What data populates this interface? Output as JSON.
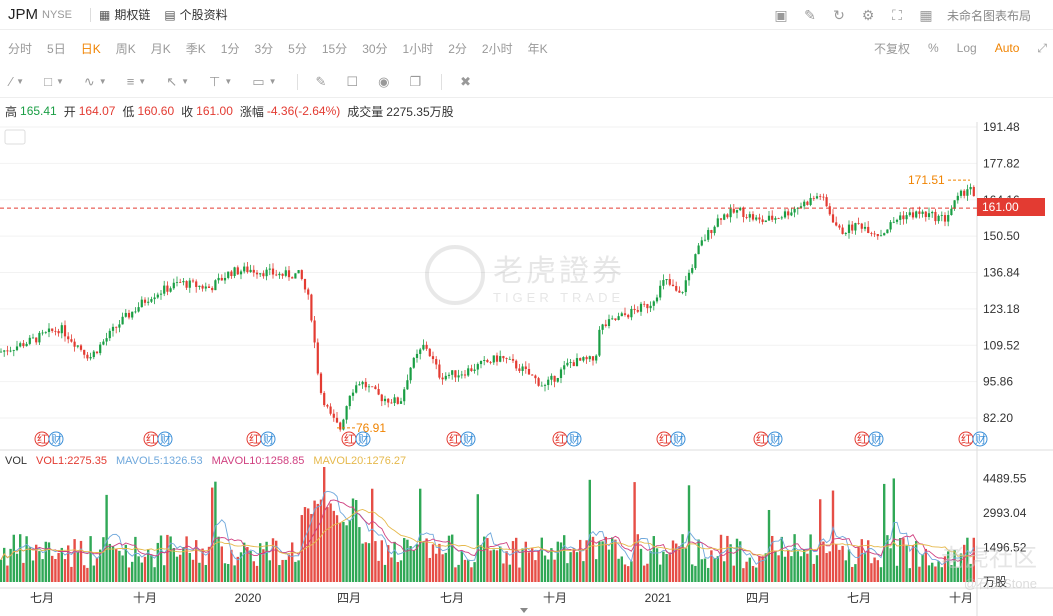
{
  "header": {
    "symbol": "JPM",
    "exchange": "NYSE",
    "options_chain": "期权链",
    "stock_profile": "个股资料",
    "layout_name": "未命名图表布局"
  },
  "periods": [
    "分时",
    "5日",
    "日K",
    "周K",
    "月K",
    "季K",
    "1分",
    "3分",
    "5分",
    "15分",
    "30分",
    "1小时",
    "2分",
    "2小时",
    "年K"
  ],
  "period_active": "日K",
  "period_right": {
    "adjust": "不复权",
    "percent": "%",
    "log": "Log",
    "auto": "Auto"
  },
  "info": {
    "high_label": "高",
    "high": "165.41",
    "open_label": "开",
    "open": "164.07",
    "low_label": "低",
    "low": "160.60",
    "close_label": "收",
    "close": "161.00",
    "change_label": "涨幅",
    "change": "-4.36(-2.64%)",
    "volume_label": "成交量",
    "volume": "2275.35万股"
  },
  "price_axis": [
    "191.48",
    "177.82",
    "164.16",
    "150.50",
    "136.84",
    "123.18",
    "109.52",
    "95.86",
    "82.20"
  ],
  "current_price": "161.00",
  "high_marker": "171.51",
  "low_marker": "76.91",
  "event_marker_label": "红",
  "event_marker_label2": "财",
  "vol_axis": [
    "4489.55",
    "2993.04",
    "1496.52"
  ],
  "vol_unit": "万股",
  "vol_legend": {
    "vol": "VOL",
    "vol1": "VOL1:2275.35",
    "mavol5": "MAVOL5:1326.53",
    "mavol10": "MAVOL10:1258.85",
    "mavol20": "MAVOL20:1276.27"
  },
  "x_axis": [
    "七月",
    "十月",
    "2020",
    "四月",
    "七月",
    "十月",
    "2021",
    "四月",
    "七月",
    "十月"
  ],
  "watermark": {
    "brand_cn": "老虎證券",
    "brand_en": "TIGER TRADE"
  },
  "corner_watermark": {
    "title": "老虎社区",
    "author": "@石头Stone"
  },
  "colors": {
    "up": "#e33b32",
    "down": "#1a9e44",
    "accent": "#f08300",
    "ma5": "#6fa8dc",
    "ma10": "#d04080",
    "ma20": "#e6b94c"
  },
  "chart_data": {
    "type": "candlestick",
    "price_range": [
      76.91,
      191.48
    ],
    "vol_range": [
      0,
      5000
    ],
    "anchors": [
      [
        0,
        107
      ],
      [
        30,
        111
      ],
      [
        60,
        116
      ],
      [
        90,
        105
      ],
      [
        120,
        118
      ],
      [
        150,
        128
      ],
      [
        180,
        133
      ],
      [
        210,
        131
      ],
      [
        230,
        137
      ],
      [
        250,
        138
      ],
      [
        280,
        136
      ],
      [
        300,
        136
      ],
      [
        310,
        125
      ],
      [
        320,
        93
      ],
      [
        330,
        83
      ],
      [
        340,
        78
      ],
      [
        350,
        92
      ],
      [
        360,
        96
      ],
      [
        380,
        90
      ],
      [
        400,
        88
      ],
      [
        410,
        101
      ],
      [
        425,
        110
      ],
      [
        440,
        98
      ],
      [
        460,
        99
      ],
      [
        480,
        102
      ],
      [
        500,
        105
      ],
      [
        520,
        101
      ],
      [
        545,
        94
      ],
      [
        570,
        103
      ],
      [
        595,
        104
      ],
      [
        600,
        116
      ],
      [
        620,
        120
      ],
      [
        650,
        125
      ],
      [
        665,
        134
      ],
      [
        680,
        128
      ],
      [
        700,
        147
      ],
      [
        720,
        158
      ],
      [
        740,
        160
      ],
      [
        760,
        156
      ],
      [
        780,
        158
      ],
      [
        800,
        162
      ],
      [
        820,
        166
      ],
      [
        840,
        152
      ],
      [
        860,
        155
      ],
      [
        880,
        151
      ],
      [
        900,
        158
      ],
      [
        920,
        159
      ],
      [
        945,
        157
      ],
      [
        955,
        163
      ],
      [
        970,
        170
      ],
      [
        976,
        161
      ]
    ]
  }
}
